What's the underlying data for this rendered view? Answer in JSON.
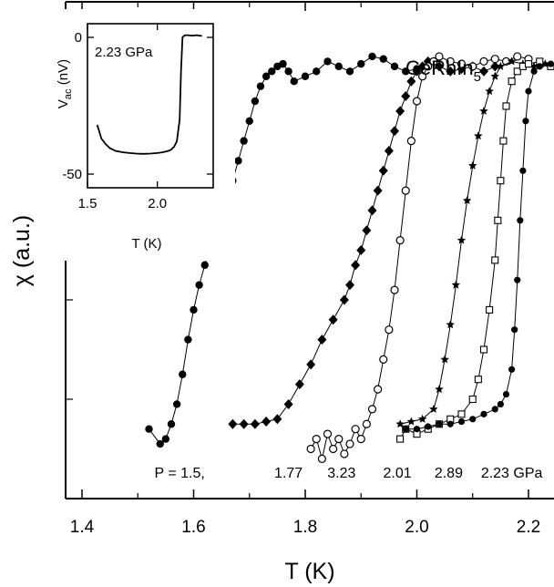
{
  "chart_data": {
    "type": "scatter",
    "xlabel": "T (K)",
    "ylabel": "χ (a.u.)",
    "xlim": [
      1.4,
      2.3
    ],
    "ylim": [
      0,
      1
    ],
    "x_ticks": [
      "1.4",
      "1.6",
      "1.8",
      "2.0",
      "2.2"
    ],
    "x_tick_values": [
      1.4,
      1.6,
      1.8,
      2.0,
      2.2
    ],
    "grid": false,
    "compound": "CeRhIn",
    "compound_sub": "5",
    "annotations": [
      {
        "text": "P = 1.5,",
        "x": 1.575,
        "y": 0.04
      },
      {
        "text": "1.77",
        "x": 1.77,
        "y": 0.04
      },
      {
        "text": "3.23",
        "x": 1.865,
        "y": 0.04
      },
      {
        "text": "2.01",
        "x": 1.965,
        "y": 0.04
      },
      {
        "text": "2.89",
        "x": 2.057,
        "y": 0.04
      },
      {
        "text": "2.23 GPa",
        "x": 2.17,
        "y": 0.04
      }
    ],
    "series": [
      {
        "marker": "filled-circle",
        "x": [
          1.52,
          1.54,
          1.55,
          1.56,
          1.57,
          1.58,
          1.59,
          1.6,
          1.61,
          1.62,
          1.63,
          1.64,
          1.65,
          1.66,
          1.67,
          1.68,
          1.69,
          1.7,
          1.71,
          1.72,
          1.73,
          1.74,
          1.75,
          1.76,
          1.77,
          1.78,
          1.8,
          1.82,
          1.84,
          1.86,
          1.88,
          1.9,
          1.92,
          1.94,
          1.96,
          1.98,
          2.0
        ],
        "y": [
          0.14,
          0.11,
          0.12,
          0.15,
          0.19,
          0.25,
          0.32,
          0.38,
          0.43,
          0.47,
          0.51,
          0.55,
          0.58,
          0.61,
          0.64,
          0.68,
          0.72,
          0.76,
          0.8,
          0.83,
          0.85,
          0.86,
          0.87,
          0.875,
          0.86,
          0.84,
          0.85,
          0.86,
          0.88,
          0.87,
          0.86,
          0.875,
          0.89,
          0.885,
          0.87,
          0.86,
          0.865
        ]
      },
      {
        "marker": "filled-diamond",
        "x": [
          1.67,
          1.69,
          1.71,
          1.73,
          1.75,
          1.77,
          1.79,
          1.81,
          1.83,
          1.85,
          1.87,
          1.88,
          1.89,
          1.9,
          1.91,
          1.92,
          1.93,
          1.94,
          1.95,
          1.96,
          1.97,
          1.98,
          1.99,
          2.0,
          2.01,
          2.02,
          2.04,
          2.06,
          2.08,
          2.1,
          2.12,
          2.14
        ],
        "y": [
          0.15,
          0.15,
          0.15,
          0.155,
          0.16,
          0.19,
          0.23,
          0.27,
          0.32,
          0.36,
          0.4,
          0.43,
          0.47,
          0.5,
          0.54,
          0.58,
          0.62,
          0.66,
          0.7,
          0.74,
          0.78,
          0.81,
          0.84,
          0.86,
          0.87,
          0.88,
          0.87,
          0.86,
          0.865,
          0.87,
          0.86,
          0.87
        ]
      },
      {
        "marker": "open-circle",
        "x": [
          1.81,
          1.82,
          1.83,
          1.84,
          1.85,
          1.86,
          1.87,
          1.88,
          1.89,
          1.9,
          1.91,
          1.92,
          1.93,
          1.94,
          1.95,
          1.96,
          1.97,
          1.98,
          1.99,
          2.0,
          2.01,
          2.02,
          2.03,
          2.04,
          2.06,
          2.08,
          2.1,
          2.12,
          2.14,
          2.16,
          2.18,
          2.2
        ],
        "y": [
          0.1,
          0.12,
          0.08,
          0.13,
          0.1,
          0.12,
          0.09,
          0.11,
          0.14,
          0.12,
          0.15,
          0.18,
          0.22,
          0.28,
          0.34,
          0.42,
          0.52,
          0.62,
          0.72,
          0.8,
          0.85,
          0.87,
          0.88,
          0.89,
          0.88,
          0.875,
          0.87,
          0.88,
          0.885,
          0.88,
          0.89,
          0.885
        ]
      },
      {
        "marker": "filled-star",
        "x": [
          1.97,
          1.99,
          2.01,
          2.03,
          2.04,
          2.05,
          2.06,
          2.07,
          2.08,
          2.09,
          2.1,
          2.11,
          2.12,
          2.13,
          2.14,
          2.15,
          2.17,
          2.19,
          2.21,
          2.23
        ],
        "y": [
          0.15,
          0.155,
          0.16,
          0.18,
          0.22,
          0.28,
          0.35,
          0.43,
          0.52,
          0.6,
          0.67,
          0.73,
          0.78,
          0.82,
          0.85,
          0.87,
          0.88,
          0.875,
          0.87,
          0.875
        ]
      },
      {
        "marker": "open-square",
        "x": [
          1.97,
          1.98,
          2.0,
          2.02,
          2.04,
          2.06,
          2.08,
          2.1,
          2.11,
          2.12,
          2.13,
          2.14,
          2.145,
          2.15,
          2.155,
          2.16,
          2.17,
          2.18,
          2.19,
          2.2,
          2.22,
          2.24,
          2.26
        ],
        "y": [
          0.12,
          0.14,
          0.13,
          0.14,
          0.15,
          0.16,
          0.17,
          0.2,
          0.24,
          0.3,
          0.38,
          0.48,
          0.56,
          0.64,
          0.72,
          0.79,
          0.84,
          0.86,
          0.87,
          0.875,
          0.88,
          0.87,
          0.875
        ]
      },
      {
        "marker": "filled-circle-small",
        "x": [
          1.98,
          2.0,
          2.02,
          2.04,
          2.06,
          2.08,
          2.1,
          2.12,
          2.14,
          2.15,
          2.16,
          2.17,
          2.175,
          2.18,
          2.185,
          2.19,
          2.195,
          2.2,
          2.21,
          2.22,
          2.24,
          2.26
        ],
        "y": [
          0.14,
          0.14,
          0.145,
          0.15,
          0.15,
          0.155,
          0.16,
          0.17,
          0.18,
          0.19,
          0.21,
          0.26,
          0.34,
          0.44,
          0.56,
          0.66,
          0.76,
          0.82,
          0.86,
          0.87,
          0.875,
          0.87
        ]
      }
    ],
    "inset": {
      "type": "line",
      "xlabel": "T (K)",
      "ylabel": "V",
      "ylabel_sub": "ac",
      "ylabel_unit": " (nV)",
      "xlim": [
        1.5,
        2.4
      ],
      "ylim": [
        -55,
        5
      ],
      "x_ticks": [
        "1.5",
        "2.0"
      ],
      "x_tick_values": [
        1.5,
        2.0
      ],
      "y_ticks": [
        "0",
        "-50"
      ],
      "y_tick_values": [
        0,
        -50
      ],
      "annotation": "2.23 GPa",
      "x": [
        1.57,
        1.6,
        1.63,
        1.66,
        1.7,
        1.75,
        1.8,
        1.85,
        1.9,
        1.95,
        2.0,
        2.04,
        2.08,
        2.1,
        2.12,
        2.14,
        2.16,
        2.17,
        2.18,
        2.19,
        2.2,
        2.22,
        2.25,
        2.28,
        2.32
      ],
      "y": [
        -32,
        -37,
        -39,
        -40.5,
        -41.5,
        -42,
        -42.3,
        -42.5,
        -42.6,
        -42.5,
        -42.3,
        -42,
        -41.5,
        -41,
        -40,
        -38,
        -30,
        -12,
        0,
        0.5,
        0.8,
        0.8,
        0.6,
        0.8,
        0.5
      ]
    }
  }
}
